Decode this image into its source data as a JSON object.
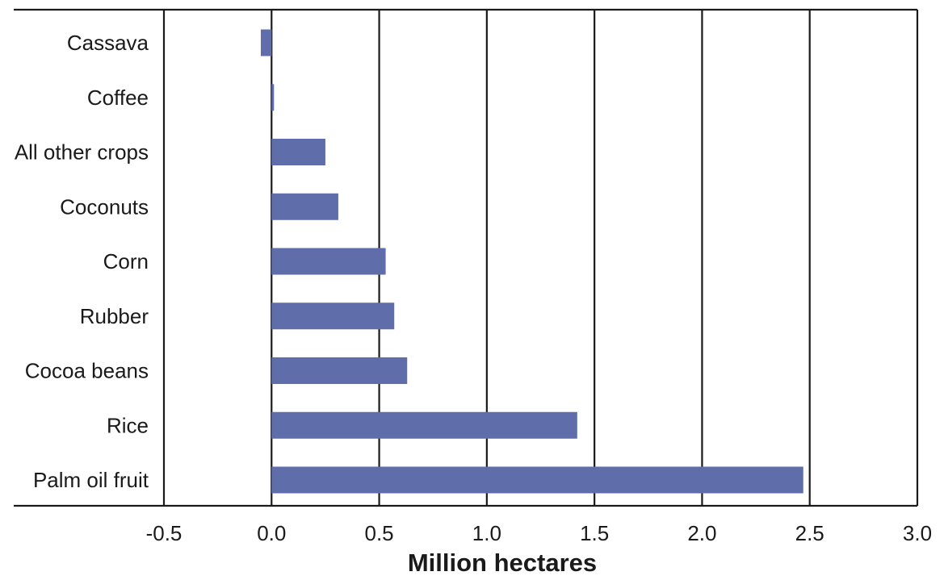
{
  "chart_data": {
    "type": "bar",
    "orientation": "horizontal",
    "categories": [
      "Cassava",
      "Coffee",
      "All other crops",
      "Coconuts",
      "Corn",
      "Rubber",
      "Cocoa beans",
      "Rice",
      "Palm oil fruit"
    ],
    "values": [
      -0.05,
      0.01,
      0.25,
      0.31,
      0.53,
      0.57,
      0.63,
      1.42,
      2.47
    ],
    "xlabel": "Million hectares",
    "ylabel": "",
    "title": "",
    "xlim": [
      -0.5,
      3.0
    ],
    "xticks": [
      -0.5,
      0.0,
      0.5,
      1.0,
      1.5,
      2.0,
      2.5,
      3.0
    ],
    "xtick_labels": [
      "-0.5",
      "0.0",
      "0.5",
      "1.0",
      "1.5",
      "2.0",
      "2.5",
      "3.0"
    ],
    "grid": "vertical",
    "legend": "none",
    "bar_color": "#5f6dab"
  }
}
